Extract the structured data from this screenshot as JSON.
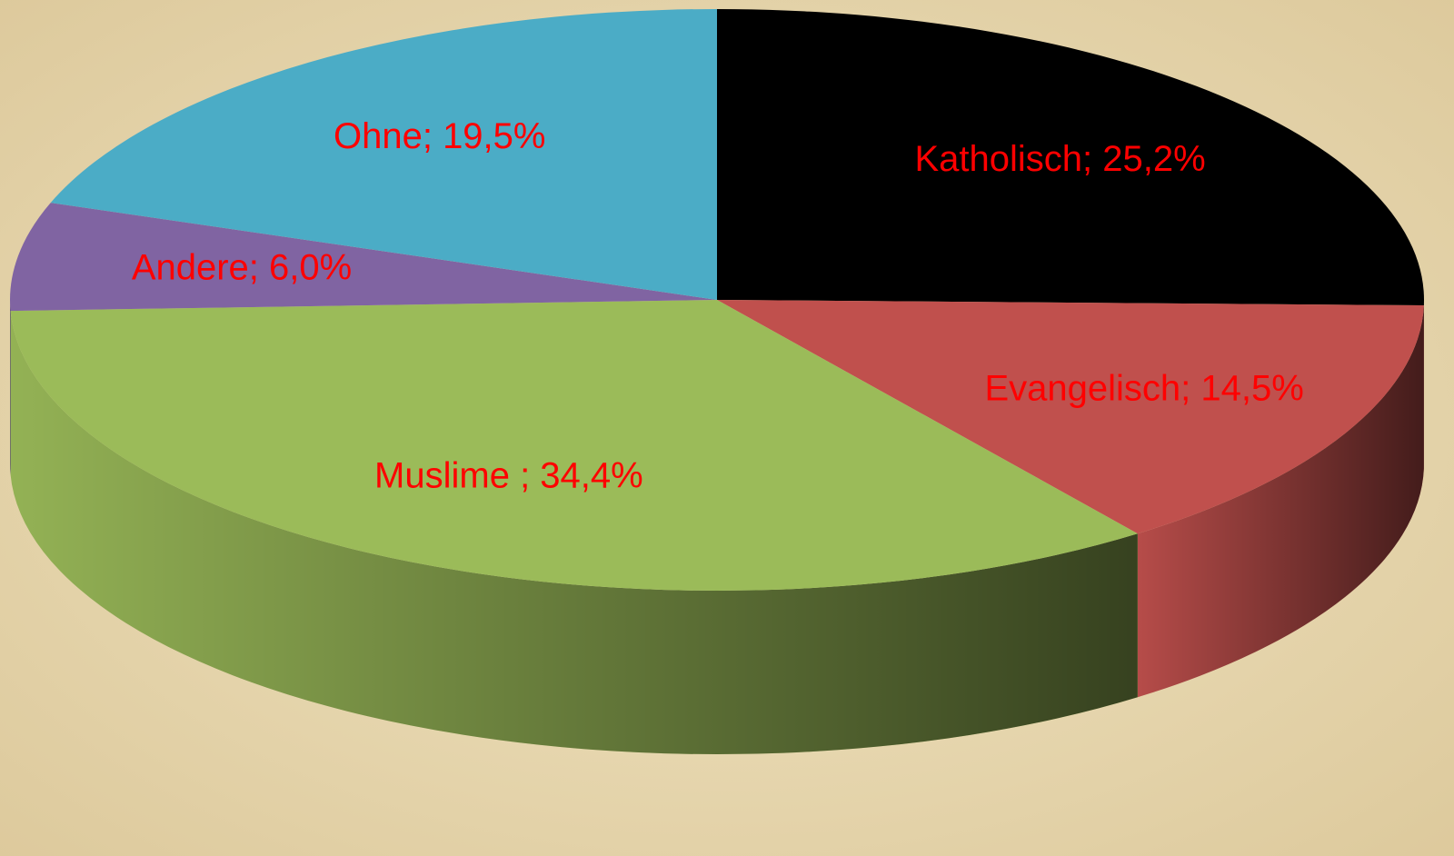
{
  "chart_data": {
    "type": "pie",
    "values": [
      25.2,
      14.5,
      34.4,
      6.0,
      19.5
    ],
    "value_labels": [
      "Katholisch; 25,2%",
      "Evangelisch; 14,5%",
      "Muslime ; 34,4%",
      "Andere; 6,0%",
      "Ohne; 19,5%"
    ],
    "colors": [
      "#000000",
      "#c0504d",
      "#9bbb59",
      "#8064a2",
      "#4bacc6"
    ],
    "label_color": "#ff0000"
  }
}
